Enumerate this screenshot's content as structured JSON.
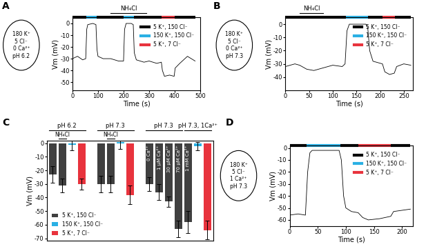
{
  "chart_data": [
    {
      "type": "line",
      "panel": "A",
      "inset": [
        "180 K⁺",
        "5 Cl⁻",
        "0 Ca²⁺",
        "pH 6.2"
      ],
      "x": [
        0,
        20,
        40,
        52,
        56,
        60,
        80,
        92,
        96,
        100,
        120,
        150,
        180,
        200,
        204,
        210,
        230,
        238,
        242,
        250,
        280,
        300,
        330,
        348,
        352,
        360,
        380,
        398,
        402,
        420,
        450,
        480
      ],
      "values": [
        -30,
        -28,
        -31,
        -30,
        -5,
        -1,
        0,
        -1,
        -22,
        -28,
        -30,
        -30,
        -32,
        -32,
        -5,
        0,
        0,
        -1,
        -25,
        -31,
        -33,
        -32,
        -34,
        -33,
        -40,
        -45,
        -44,
        -45,
        -38,
        -34,
        -28,
        -32
      ],
      "color": "#000000",
      "solutions": [
        {
          "name": "5 K⁺, 150 Cl⁻",
          "color": "#000000"
        },
        {
          "name": "150 K⁺, 150 Cl⁻",
          "color": "#2ab0e4"
        },
        {
          "name": "5 K⁺, 7 Cl⁻",
          "color": "#e8333d"
        }
      ],
      "solution_periods": [
        {
          "start": 0,
          "end": 55,
          "color": "#000000"
        },
        {
          "start": 55,
          "end": 95,
          "color": "#2ab0e4"
        },
        {
          "start": 95,
          "end": 200,
          "color": "#000000"
        },
        {
          "start": 200,
          "end": 240,
          "color": "#2ab0e4"
        },
        {
          "start": 240,
          "end": 350,
          "color": "#000000"
        },
        {
          "start": 350,
          "end": 400,
          "color": "#e8333d"
        },
        {
          "start": 400,
          "end": 480,
          "color": "#000000"
        }
      ],
      "annotations": [
        {
          "text": "NH₄Cl",
          "start": 150,
          "end": 290
        }
      ],
      "xlabel": "Time (s)",
      "ylabel": "Vm (mV)",
      "xlim": [
        0,
        500
      ],
      "xticks": [
        0,
        100,
        200,
        300,
        400,
        500
      ],
      "ylim": [
        -57,
        5
      ],
      "yticks": [
        -50,
        -40,
        -30,
        -20,
        -10,
        0
      ],
      "legend": "upper right"
    },
    {
      "type": "line",
      "panel": "B",
      "inset": [
        "180 K⁺",
        "5 Cl⁻",
        "0 Ca²⁺",
        "pH 7.3"
      ],
      "x": [
        0,
        20,
        30,
        45,
        60,
        80,
        100,
        120,
        126,
        130,
        135,
        170,
        174,
        178,
        185,
        205,
        210,
        220,
        230,
        235,
        250,
        265
      ],
      "values": [
        -32,
        -30,
        -31,
        -34,
        -35,
        -33,
        -31,
        -32,
        -30,
        -5,
        0,
        0,
        -3,
        -20,
        -28,
        -30,
        -36,
        -38,
        -37,
        -32,
        -30,
        -31
      ],
      "color": "#000000",
      "solutions": [
        {
          "name": "5 K⁺, 150 Cl⁻",
          "color": "#000000"
        },
        {
          "name": "150 K⁺, 150 Cl⁻",
          "color": "#2ab0e4"
        },
        {
          "name": "5 K⁺, 7 Cl⁻",
          "color": "#e8333d"
        }
      ],
      "solution_periods": [
        {
          "start": 0,
          "end": 128,
          "color": "#000000"
        },
        {
          "start": 128,
          "end": 175,
          "color": "#2ab0e4"
        },
        {
          "start": 175,
          "end": 205,
          "color": "#000000"
        },
        {
          "start": 205,
          "end": 232,
          "color": "#e8333d"
        },
        {
          "start": 232,
          "end": 265,
          "color": "#000000"
        }
      ],
      "annotations": [
        {
          "text": "NH₄Cl",
          "start": 30,
          "end": 80
        }
      ],
      "xlabel": "Time (s)",
      "ylabel": "Vm (mV)",
      "xlim": [
        0,
        270
      ],
      "xticks": [
        0,
        50,
        100,
        150,
        200,
        250
      ],
      "ylim": [
        -50,
        5
      ],
      "yticks": [
        -40,
        -30,
        -20,
        -10,
        0
      ],
      "legend": "upper right"
    },
    {
      "type": "bar",
      "panel": "C",
      "categories": [
        null,
        null,
        null,
        null,
        null,
        null,
        null,
        null,
        null,
        null,
        "0 Ca²⁺",
        "1 µM Ca²⁺",
        "30 µM Ca²⁺",
        "70 µM Ca²⁺",
        "1 mM Ca²⁺",
        null,
        null
      ],
      "values": [
        -23,
        -31,
        -1,
        -30,
        null,
        -30,
        -30,
        1,
        -38,
        null,
        -30,
        -36,
        -43,
        -63,
        -58,
        -2,
        -64
      ],
      "errors": [
        6,
        5,
        4,
        4,
        null,
        6,
        6,
        5,
        7,
        null,
        5,
        6,
        4,
        6,
        8,
        3,
        7
      ],
      "colors": [
        "#404040",
        "#404040",
        "#2ab0e4",
        "#e8333d",
        null,
        "#404040",
        "#404040",
        "#2ab0e4",
        "#e8333d",
        null,
        "#404040",
        "#404040",
        "#404040",
        "#404040",
        "#404040",
        "#2ab0e4",
        "#e8333d"
      ],
      "groups": [
        {
          "text": "pH 6.2",
          "start": 0,
          "end": 3
        },
        {
          "text": "pH 7.3",
          "start": 5,
          "end": 8
        },
        {
          "text": "pH 7.3",
          "start": 10,
          "end": 13
        },
        {
          "text": "pH 7.3, 1Ca²⁺",
          "start": 14,
          "end": 16
        }
      ],
      "annotations": [
        {
          "text": "NH₄Cl",
          "start": 1,
          "end": 1
        },
        {
          "text": "NH₄Cl",
          "start": 6,
          "end": 6
        }
      ],
      "solutions": [
        {
          "name": "5 K⁺, 150 Cl⁻",
          "color": "#404040"
        },
        {
          "name": "150 K⁺, 150 Cl⁻",
          "color": "#2ab0e4"
        },
        {
          "name": "5 K⁺, 7 Cl⁻",
          "color": "#e8333d"
        }
      ],
      "ylabel": "Vm (mV)",
      "ylim": [
        -72,
        2
      ],
      "yticks": [
        -70,
        -60,
        -50,
        -40,
        -30,
        -20,
        -10,
        0
      ],
      "tick_labels": "y",
      "legend": "lower left"
    },
    {
      "type": "line",
      "panel": "D",
      "inset": [
        "180 K⁺",
        "5 Cl⁻",
        "1 Ca²⁺",
        "pH 7.3"
      ],
      "x": [
        0,
        15,
        28,
        32,
        36,
        40,
        60,
        88,
        92,
        96,
        100,
        110,
        122,
        130,
        140,
        160,
        180,
        185,
        200,
        215
      ],
      "values": [
        -56,
        -55,
        -56,
        -20,
        -4,
        -2,
        -2,
        -2,
        -10,
        -40,
        -50,
        -53,
        -54,
        -58,
        -60,
        -59,
        -57,
        -53,
        -52,
        -51
      ],
      "color": "#000000",
      "solutions": [
        {
          "name": "5 K⁺, 150 Cl⁻",
          "color": "#000000"
        },
        {
          "name": "150 K⁺, 150 Cl⁻",
          "color": "#2ab0e4"
        },
        {
          "name": "5 K⁺, 7 Cl⁻",
          "color": "#e8333d"
        }
      ],
      "solution_periods": [
        {
          "start": 0,
          "end": 30,
          "color": "#000000"
        },
        {
          "start": 30,
          "end": 90,
          "color": "#2ab0e4"
        },
        {
          "start": 90,
          "end": 122,
          "color": "#000000"
        },
        {
          "start": 122,
          "end": 180,
          "color": "#e8333d"
        },
        {
          "start": 180,
          "end": 215,
          "color": "#000000"
        }
      ],
      "annotations": [],
      "xlabel": "Time (s)",
      "ylabel": "Vm (mV)",
      "xlim": [
        0,
        220
      ],
      "xticks": [
        0,
        50,
        100,
        150,
        200
      ],
      "ylim": [
        -65,
        2
      ],
      "yticks": [
        -60,
        -50,
        -40,
        -30,
        -20,
        -10,
        0
      ],
      "legend": "upper right"
    }
  ]
}
